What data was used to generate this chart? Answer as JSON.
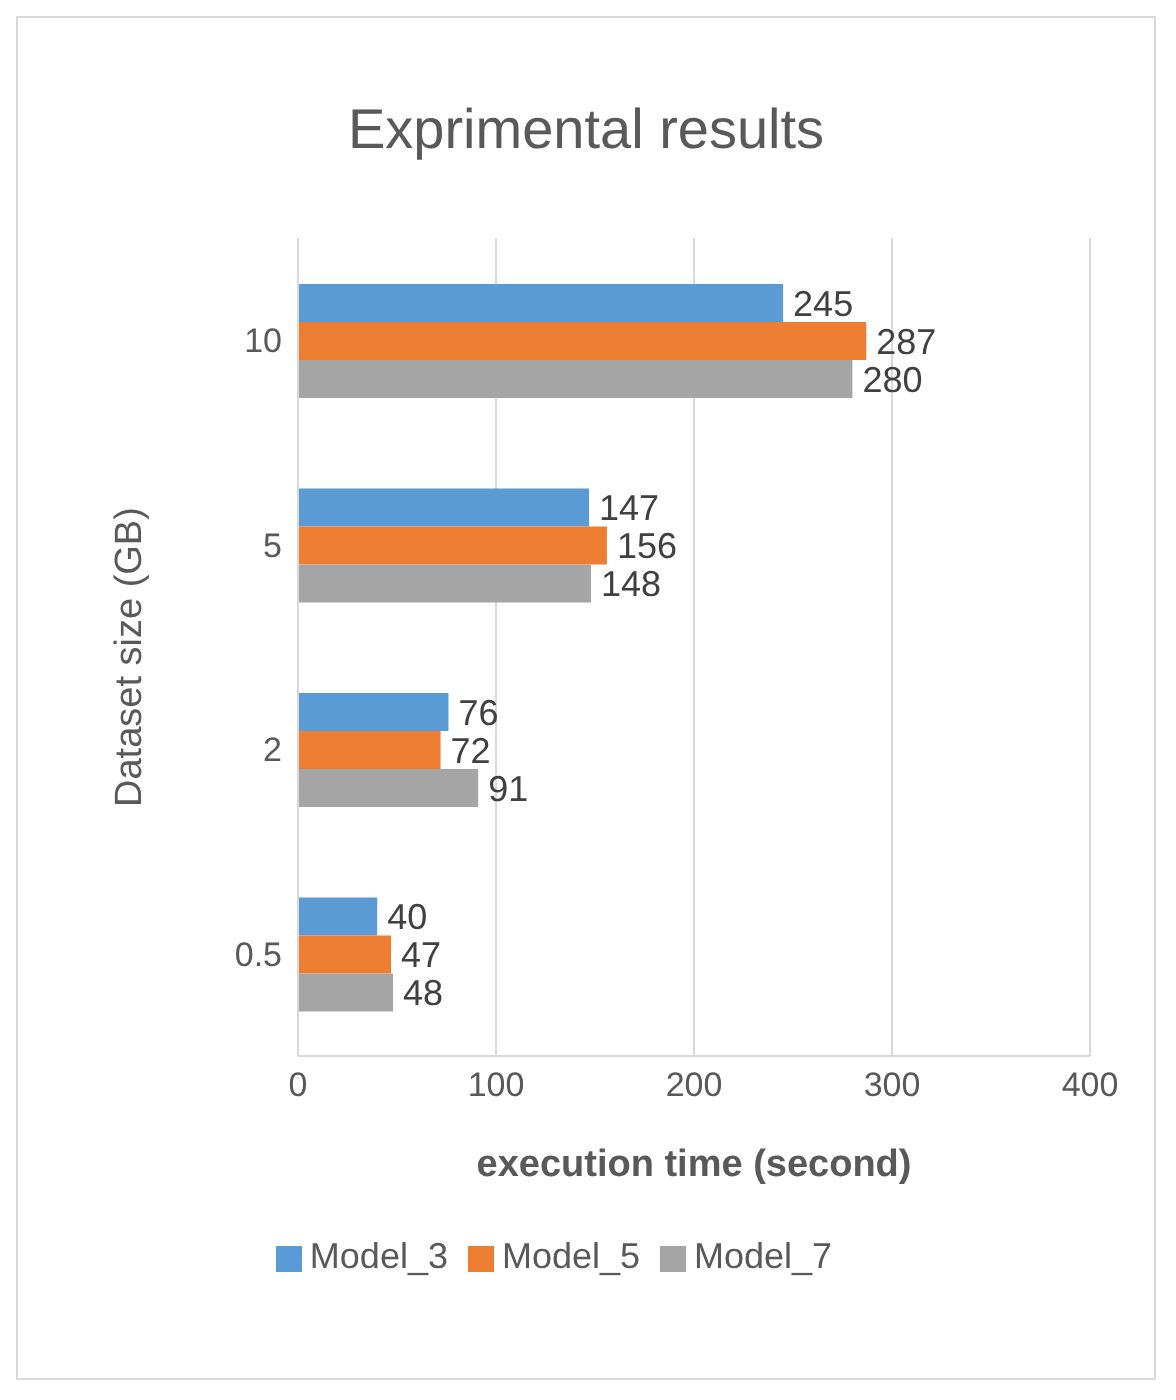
{
  "chart_data": {
    "type": "bar",
    "orientation": "horizontal",
    "title": "Exprimental results",
    "xlabel": "execution time (second)",
    "ylabel": "Dataset size (GB)",
    "categories": [
      "10",
      "5",
      "2",
      "0.5"
    ],
    "series": [
      {
        "name": "Model_3",
        "color": "#5b9bd5",
        "values": [
          245,
          147,
          76,
          40
        ]
      },
      {
        "name": "Model_5",
        "color": "#ed7d31",
        "values": [
          287,
          156,
          72,
          47
        ]
      },
      {
        "name": "Model_7",
        "color": "#a5a5a5",
        "values": [
          280,
          148,
          91,
          48
        ]
      }
    ],
    "xlim": [
      0,
      400
    ],
    "xticks": [
      0,
      100,
      200,
      300,
      400
    ],
    "grid": "x",
    "legend": "bottom",
    "data_labels": true
  }
}
